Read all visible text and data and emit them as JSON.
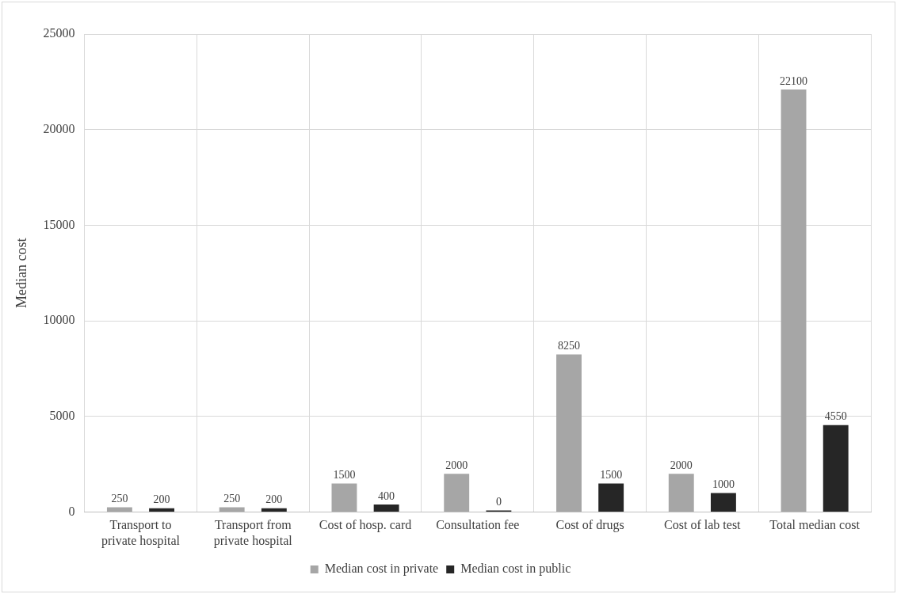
{
  "chart_data": {
    "type": "bar",
    "ylabel": "Median cost",
    "categories": [
      "Transport to private hospital",
      "Transport from private hospital",
      "Cost of hosp. card",
      "Consultation fee",
      "Cost of drugs",
      "Cost of lab test",
      "Total median cost"
    ],
    "series": [
      {
        "name": "Median cost in private",
        "color": "#a6a6a6",
        "values": [
          250,
          250,
          1500,
          2000,
          8250,
          2000,
          22100
        ]
      },
      {
        "name": "Median cost in public",
        "color": "#262626",
        "values": [
          200,
          200,
          400,
          0,
          1500,
          1000,
          4550
        ]
      }
    ],
    "ylim": [
      0,
      25000
    ],
    "yticks": [
      0,
      5000,
      10000,
      15000,
      20000,
      25000
    ],
    "grid": true,
    "legend": "bottom",
    "data_labels": true
  }
}
